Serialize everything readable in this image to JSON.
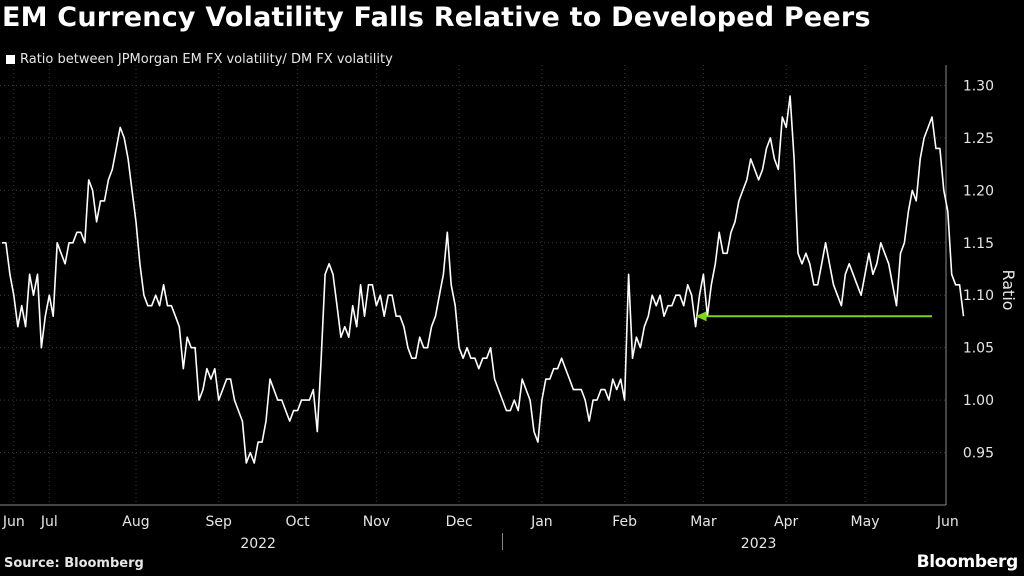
{
  "title": "EM Currency Volatility Falls Relative to Developed Peers",
  "legend_label": "Ratio between JPMorgan EM FX volatility/ DM FX volatility",
  "source": "Source: Bloomberg",
  "brand": "Bloomberg",
  "colors": {
    "background": "#000000",
    "line": "#ffffff",
    "grid": "#3a3a3a",
    "arrow": "#7ed321",
    "text": "#e6e6e6"
  },
  "chart_data": {
    "type": "line",
    "ylabel": "Ratio",
    "ylim": [
      0.9,
      1.31
    ],
    "yticks": [
      0.95,
      1.0,
      1.05,
      1.1,
      1.15,
      1.2,
      1.25,
      1.3
    ],
    "ytick_labels": [
      "0.95",
      "1.00",
      "1.05",
      "1.10",
      "1.15",
      "1.20",
      "1.25",
      "1.30"
    ],
    "xlim": [
      0,
      236
    ],
    "month_ticks": [
      {
        "label": "Jun",
        "x": 3
      },
      {
        "label": "Jul",
        "x": 12
      },
      {
        "label": "Aug",
        "x": 34
      },
      {
        "label": "Sep",
        "x": 55
      },
      {
        "label": "Oct",
        "x": 75
      },
      {
        "label": "Nov",
        "x": 95
      },
      {
        "label": "Dec",
        "x": 116
      },
      {
        "label": "Jan",
        "x": 137
      },
      {
        "label": "Feb",
        "x": 158
      },
      {
        "label": "Mar",
        "x": 178
      },
      {
        "label": "Apr",
        "x": 199
      },
      {
        "label": "May",
        "x": 219
      },
      {
        "label": "Jun",
        "x": 240
      }
    ],
    "year_labels": [
      {
        "label": "2022",
        "x": 65
      },
      {
        "label": "2023",
        "x": 192
      }
    ],
    "year_divider_x": 127,
    "series": [
      {
        "name": "Ratio between JPMorgan EM FX volatility/ DM FX volatility",
        "values": [
          1.15,
          1.15,
          1.12,
          1.1,
          1.07,
          1.09,
          1.07,
          1.12,
          1.1,
          1.12,
          1.05,
          1.08,
          1.1,
          1.08,
          1.15,
          1.14,
          1.13,
          1.15,
          1.15,
          1.16,
          1.16,
          1.15,
          1.21,
          1.2,
          1.17,
          1.19,
          1.19,
          1.21,
          1.22,
          1.24,
          1.26,
          1.25,
          1.23,
          1.2,
          1.17,
          1.13,
          1.1,
          1.09,
          1.09,
          1.1,
          1.09,
          1.11,
          1.09,
          1.09,
          1.08,
          1.07,
          1.03,
          1.06,
          1.05,
          1.05,
          1.0,
          1.01,
          1.03,
          1.02,
          1.03,
          1.0,
          1.01,
          1.02,
          1.02,
          1.0,
          0.99,
          0.98,
          0.94,
          0.95,
          0.94,
          0.96,
          0.96,
          0.98,
          1.02,
          1.01,
          1.0,
          1.0,
          0.99,
          0.98,
          0.99,
          0.99,
          1.0,
          1.0,
          1.0,
          1.01,
          0.97,
          1.04,
          1.12,
          1.13,
          1.12,
          1.09,
          1.06,
          1.07,
          1.06,
          1.09,
          1.07,
          1.11,
          1.08,
          1.11,
          1.11,
          1.09,
          1.1,
          1.08,
          1.1,
          1.1,
          1.08,
          1.08,
          1.07,
          1.05,
          1.04,
          1.04,
          1.06,
          1.05,
          1.05,
          1.07,
          1.08,
          1.1,
          1.12,
          1.16,
          1.11,
          1.09,
          1.05,
          1.04,
          1.05,
          1.04,
          1.04,
          1.03,
          1.04,
          1.04,
          1.05,
          1.02,
          1.01,
          1.0,
          0.99,
          0.99,
          1.0,
          0.99,
          1.02,
          1.01,
          1.0,
          0.97,
          0.96,
          1.0,
          1.02,
          1.02,
          1.03,
          1.03,
          1.04,
          1.03,
          1.02,
          1.01,
          1.01,
          1.01,
          1.0,
          0.98,
          1.0,
          1.0,
          1.01,
          1.01,
          1.0,
          1.02,
          1.01,
          1.02,
          1.0,
          1.12,
          1.04,
          1.06,
          1.05,
          1.07,
          1.08,
          1.1,
          1.09,
          1.1,
          1.08,
          1.09,
          1.09,
          1.1,
          1.1,
          1.09,
          1.11,
          1.1,
          1.07,
          1.1,
          1.12,
          1.08,
          1.11,
          1.13,
          1.16,
          1.14,
          1.14,
          1.16,
          1.17,
          1.19,
          1.2,
          1.21,
          1.23,
          1.22,
          1.21,
          1.22,
          1.24,
          1.25,
          1.23,
          1.22,
          1.27,
          1.26,
          1.29,
          1.23,
          1.14,
          1.13,
          1.14,
          1.13,
          1.11,
          1.11,
          1.13,
          1.15,
          1.13,
          1.11,
          1.1,
          1.09,
          1.12,
          1.13,
          1.12,
          1.11,
          1.1,
          1.12,
          1.14,
          1.12,
          1.13,
          1.15,
          1.14,
          1.13,
          1.11,
          1.09,
          1.14,
          1.15,
          1.18,
          1.2,
          1.19,
          1.23,
          1.25,
          1.26,
          1.27,
          1.24,
          1.24,
          1.2,
          1.18,
          1.12,
          1.11,
          1.11,
          1.08
        ]
      }
    ],
    "annotation": {
      "type": "arrow",
      "y": 1.08,
      "x_from": 236,
      "x_to": 176,
      "color": "#7ed321"
    }
  }
}
